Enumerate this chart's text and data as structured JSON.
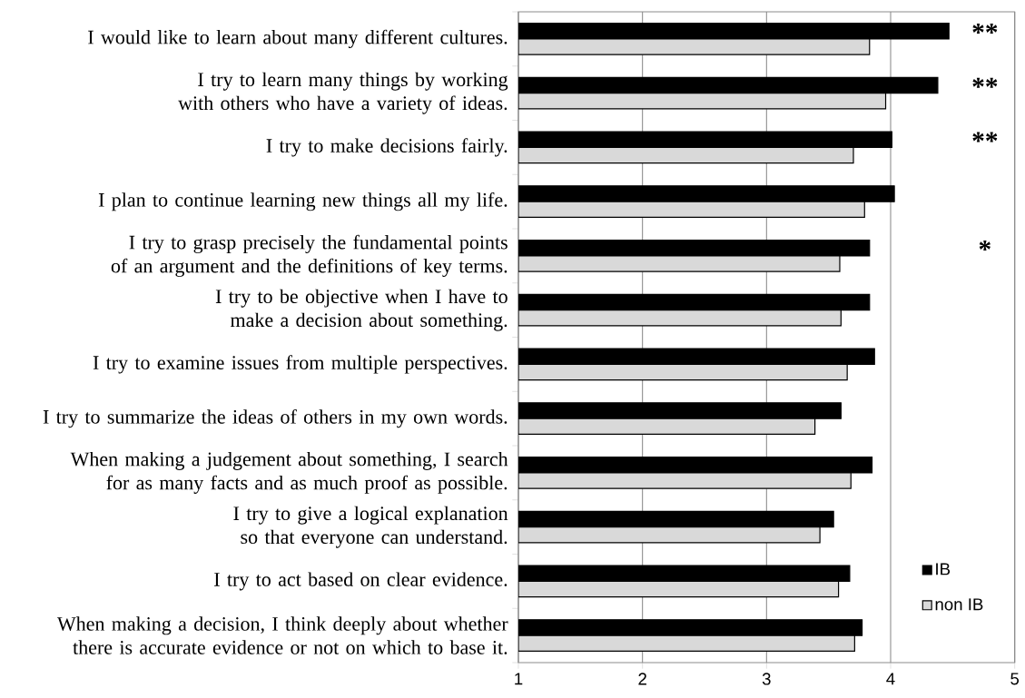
{
  "chart_data": {
    "type": "bar",
    "orientation": "horizontal",
    "categories": [
      "I would like to learn about many different cultures.",
      "I try to learn many things by working with others who have a variety of ideas.",
      "I try to make decisions fairly.",
      "I plan to continue learning new things all my life.",
      "I try to grasp precisely the fundamental points of an argument and the definitions of key terms.",
      "I try to be objective when I have to make a decision about something.",
      "I try to examine issues from multiple perspectives.",
      "I try to summarize the ideas of others in my own words.",
      "When making a judgement about something, I search for as many facts and as much proof as possible.",
      "I try to give a logical explanation so that everyone can understand.",
      "I try to act based on clear evidence.",
      "When making a decision, I think deeply about whether there is accurate evidence or not on which to base it."
    ],
    "series": [
      {
        "name": "IB",
        "color": "#000000",
        "values": [
          4.47,
          4.38,
          4.01,
          4.03,
          3.83,
          3.83,
          3.87,
          3.6,
          3.85,
          3.54,
          3.67,
          3.77
        ]
      },
      {
        "name": "non IB",
        "color": "#d9d9d9",
        "values": [
          3.83,
          3.96,
          3.7,
          3.79,
          3.59,
          3.6,
          3.65,
          3.39,
          3.68,
          3.43,
          3.58,
          3.71
        ]
      }
    ],
    "xlim": [
      1,
      5
    ],
    "xticks": [
      1,
      2,
      3,
      4,
      5
    ],
    "grid": "x",
    "legend": "bottom right",
    "annotations": [
      "**",
      "**",
      "**",
      "*"
    ]
  }
}
